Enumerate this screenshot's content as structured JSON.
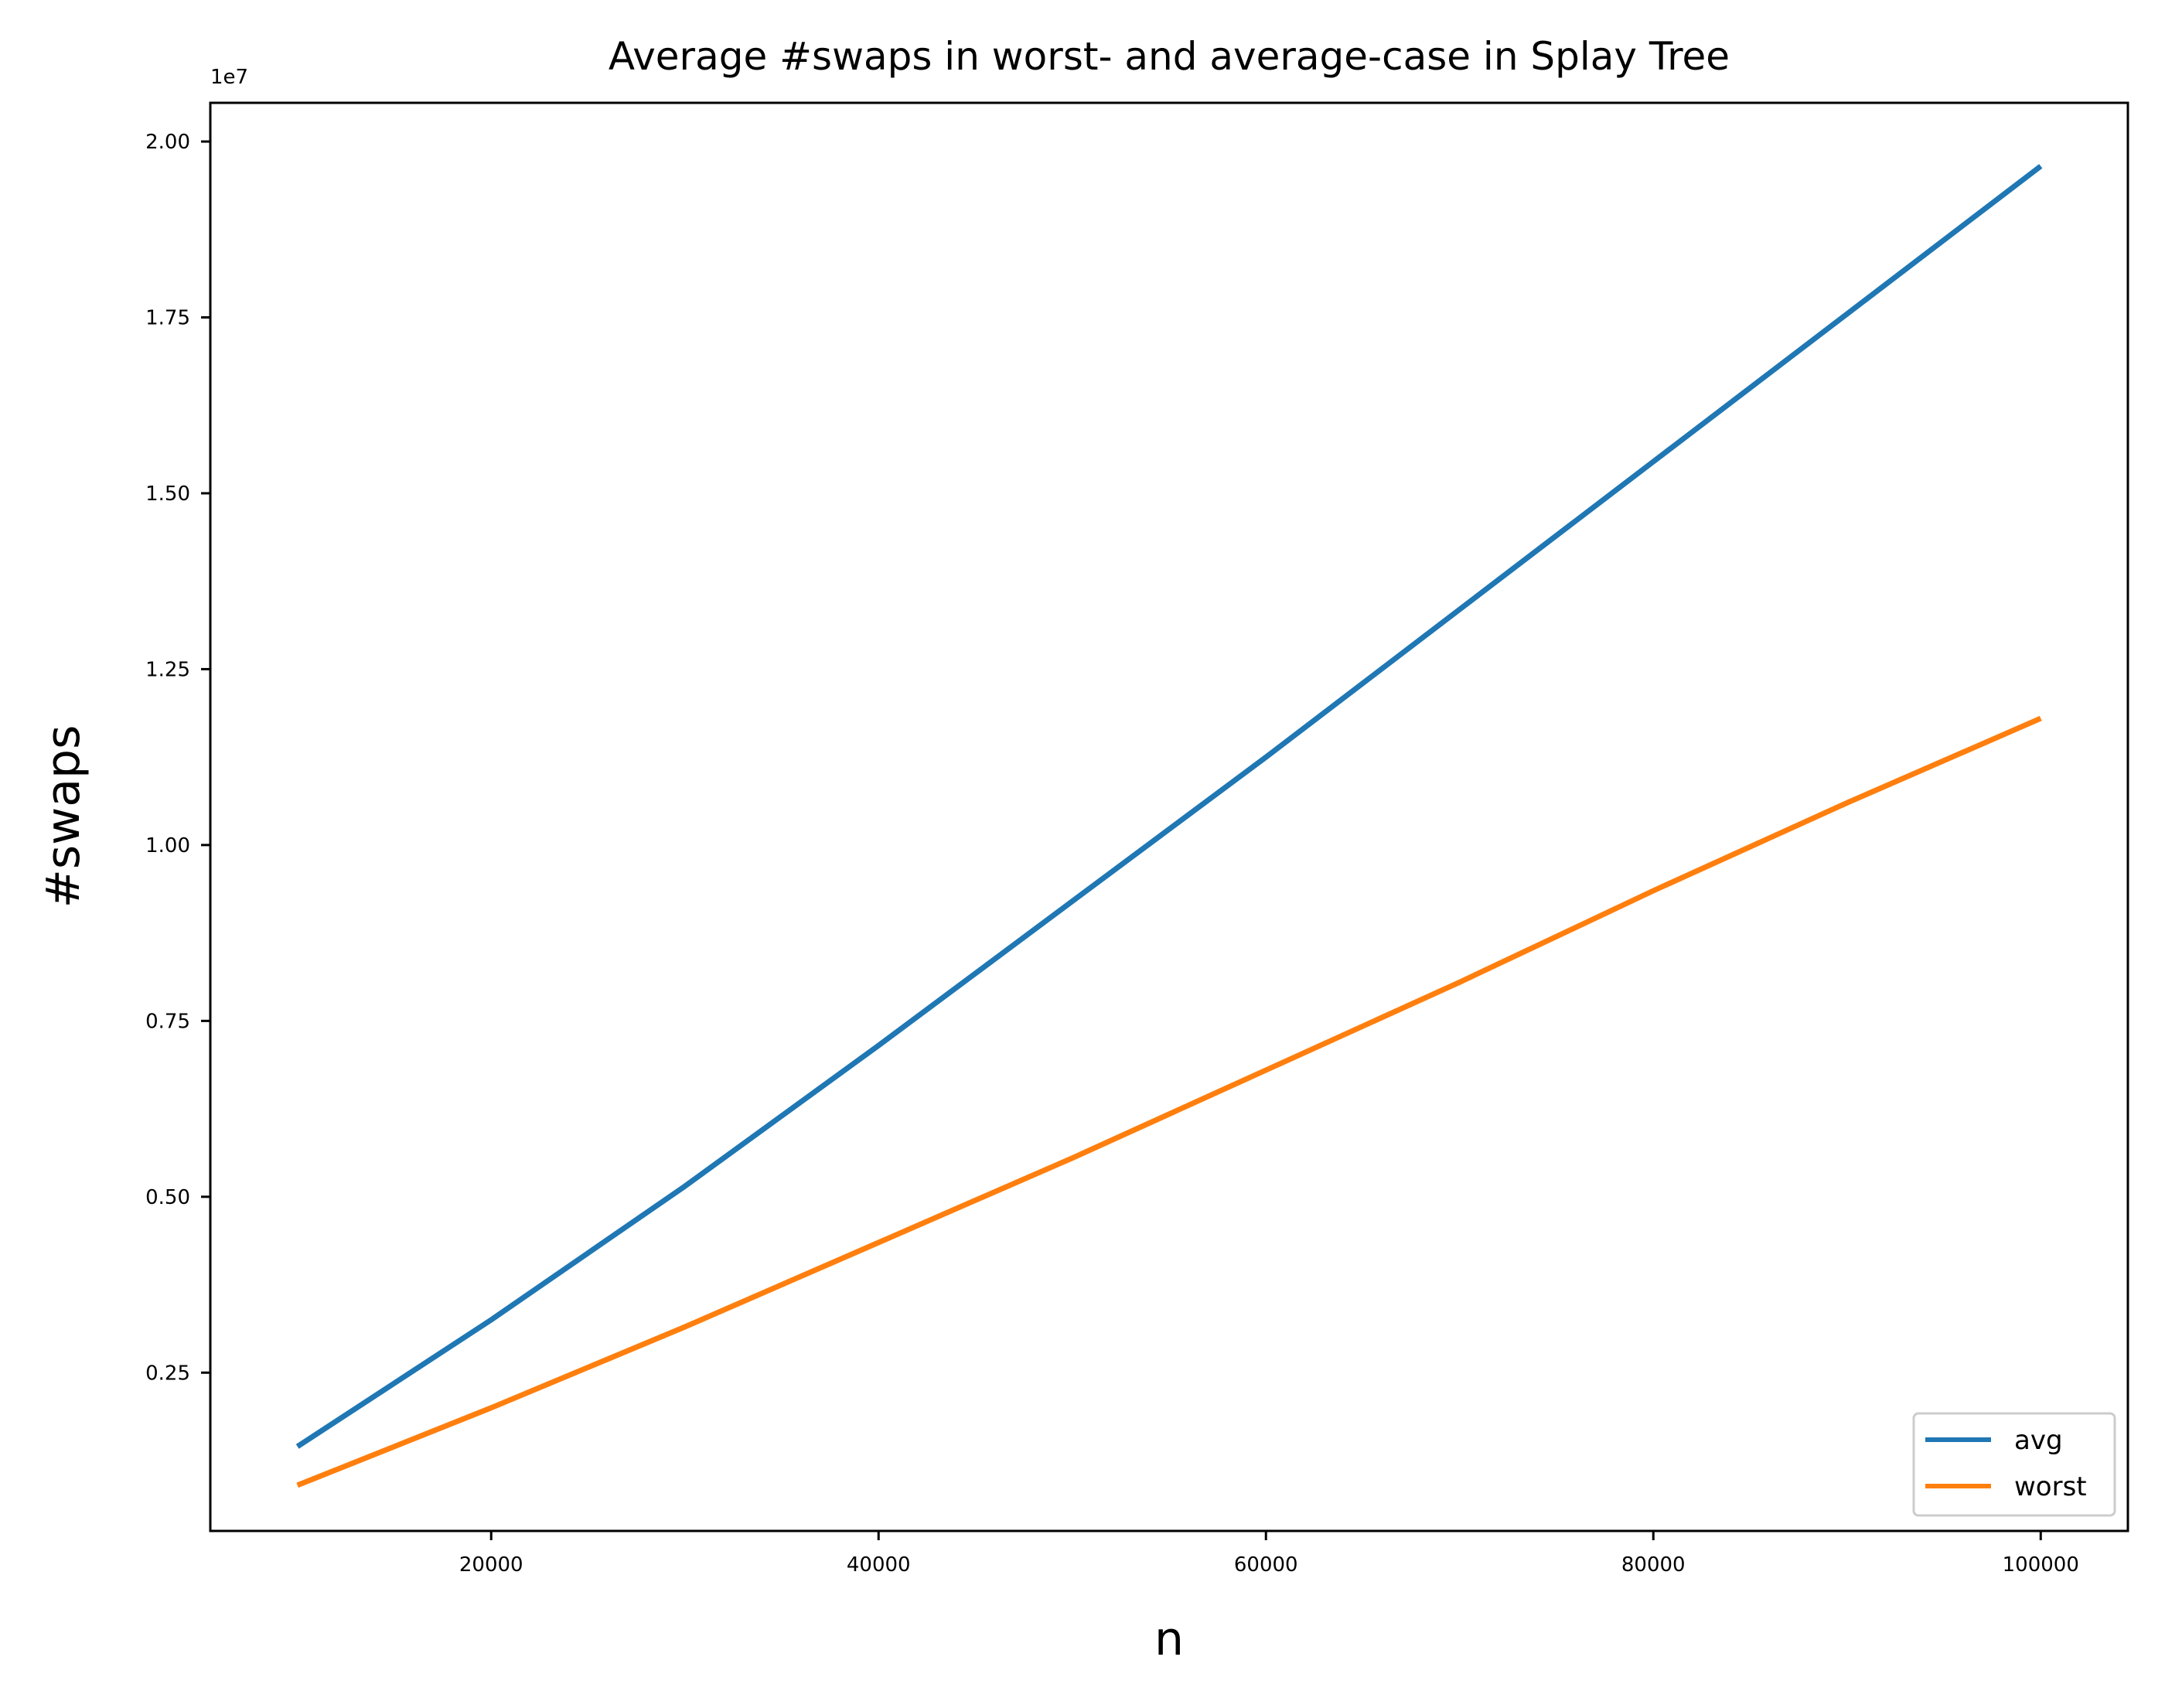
{
  "chart_data": {
    "type": "line",
    "title": "Average #swaps in worst- and average-case in Splay Tree",
    "xlabel": "n",
    "ylabel": "#swaps",
    "y_offset_label": "1e7",
    "x": [
      10000,
      20000,
      30000,
      40000,
      50000,
      60000,
      70000,
      80000,
      90000,
      100000
    ],
    "xlim": [
      5500,
      104500
    ],
    "ylim": [
      0.025,
      2.055
    ],
    "xticks": [
      20000,
      40000,
      60000,
      80000,
      100000
    ],
    "xtick_labels": [
      "20000",
      "40000",
      "60000",
      "80000",
      "100000"
    ],
    "yticks": [
      0.25,
      0.5,
      0.75,
      1.0,
      1.25,
      1.5,
      1.75,
      2.0
    ],
    "ytick_labels": [
      "0.25",
      "0.50",
      "0.75",
      "1.00",
      "1.25",
      "1.50",
      "1.75",
      "2.00"
    ],
    "grid": false,
    "legend_position": "lower-right",
    "series": [
      {
        "name": "avg",
        "color": "#1f77b4",
        "values": [
          0.145,
          0.325,
          0.515,
          0.715,
          0.92,
          1.125,
          1.335,
          1.545,
          1.755,
          1.965
        ]
      },
      {
        "name": "worst",
        "color": "#ff7f0e",
        "values": [
          0.09,
          0.2,
          0.315,
          0.435,
          0.555,
          0.68,
          0.805,
          0.935,
          1.06,
          1.18
        ]
      }
    ]
  }
}
